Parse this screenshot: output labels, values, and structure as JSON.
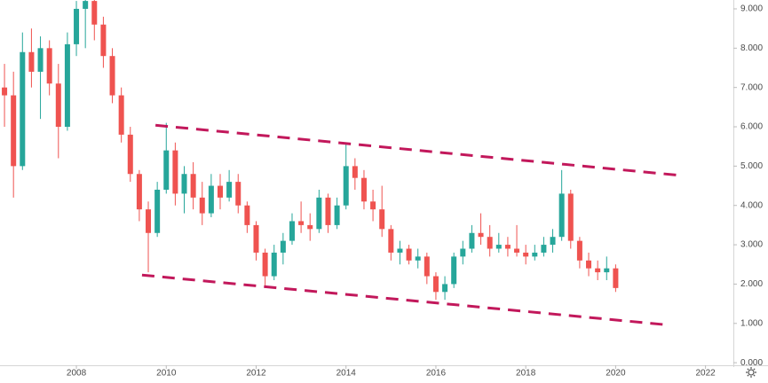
{
  "chart_data": {
    "type": "candlestick",
    "x": [
      2006.4,
      2006.6,
      2006.8,
      2007.0,
      2007.2,
      2007.4,
      2007.6,
      2007.8,
      2008.0,
      2008.2,
      2008.4,
      2008.6,
      2008.8,
      2009.0,
      2009.2,
      2009.4,
      2009.6,
      2009.8,
      2010.0,
      2010.2,
      2010.4,
      2010.6,
      2010.8,
      2011.0,
      2011.2,
      2011.4,
      2011.6,
      2011.8,
      2012.0,
      2012.2,
      2012.4,
      2012.6,
      2012.8,
      2013.0,
      2013.2,
      2013.4,
      2013.6,
      2013.8,
      2014.0,
      2014.2,
      2014.4,
      2014.6,
      2014.8,
      2015.0,
      2015.2,
      2015.4,
      2015.6,
      2015.8,
      2016.0,
      2016.2,
      2016.4,
      2016.6,
      2016.8,
      2017.0,
      2017.2,
      2017.4,
      2017.6,
      2017.8,
      2018.0,
      2018.2,
      2018.4,
      2018.6,
      2018.8,
      2019.0,
      2019.2,
      2019.4,
      2019.6,
      2019.8,
      2020.0
    ],
    "open": [
      7.0,
      6.8,
      5.0,
      7.9,
      7.4,
      8.0,
      7.1,
      6.0,
      8.1,
      9.0,
      9.2,
      8.6,
      7.8,
      6.8,
      5.8,
      4.8,
      3.9,
      3.3,
      4.4,
      5.4,
      4.3,
      4.8,
      4.2,
      3.8,
      4.5,
      4.2,
      4.6,
      4.0,
      3.5,
      2.8,
      2.2,
      2.8,
      3.1,
      3.6,
      3.5,
      3.4,
      4.2,
      3.5,
      4.0,
      5.0,
      4.7,
      4.1,
      3.9,
      3.4,
      2.8,
      2.9,
      2.6,
      2.7,
      2.2,
      1.8,
      2.0,
      2.7,
      2.9,
      3.3,
      3.2,
      2.9,
      3.0,
      2.9,
      2.8,
      2.7,
      2.8,
      3.0,
      3.2,
      4.3,
      3.1,
      2.6,
      2.4,
      2.3,
      2.4
    ],
    "high": [
      7.6,
      7.4,
      8.4,
      8.5,
      8.3,
      8.2,
      7.6,
      8.4,
      9.2,
      9.3,
      9.3,
      8.8,
      8.0,
      7.0,
      6.0,
      4.9,
      4.1,
      4.6,
      6.1,
      5.6,
      5.0,
      5.1,
      4.6,
      4.8,
      4.8,
      4.9,
      4.8,
      4.1,
      3.6,
      2.9,
      3.0,
      3.3,
      3.8,
      4.1,
      3.8,
      4.4,
      4.3,
      4.2,
      5.6,
      5.2,
      4.9,
      4.4,
      4.5,
      3.5,
      3.1,
      3.0,
      2.9,
      2.8,
      2.3,
      2.2,
      2.8,
      3.1,
      3.5,
      3.8,
      3.5,
      3.3,
      3.2,
      3.5,
      3.0,
      3.0,
      3.2,
      3.4,
      4.9,
      4.4,
      3.2,
      2.8,
      2.6,
      2.7,
      2.5
    ],
    "low": [
      6.0,
      4.2,
      4.9,
      7.0,
      6.2,
      6.8,
      5.2,
      5.9,
      7.8,
      8.0,
      8.2,
      7.5,
      6.6,
      5.6,
      4.6,
      3.6,
      2.3,
      3.2,
      4.3,
      4.0,
      3.8,
      3.9,
      3.5,
      3.7,
      3.9,
      4.1,
      3.8,
      3.3,
      2.6,
      1.9,
      2.1,
      2.5,
      3.0,
      3.3,
      3.1,
      3.3,
      3.3,
      3.4,
      3.9,
      4.4,
      3.9,
      3.6,
      3.2,
      2.6,
      2.5,
      2.5,
      2.4,
      2.0,
      1.6,
      1.6,
      1.9,
      2.5,
      2.8,
      3.0,
      2.7,
      2.8,
      2.7,
      2.7,
      2.5,
      2.6,
      2.7,
      2.8,
      3.1,
      2.9,
      2.4,
      2.2,
      2.1,
      2.1,
      1.8
    ],
    "close": [
      6.8,
      5.0,
      7.9,
      7.4,
      8.0,
      7.1,
      6.0,
      8.1,
      9.0,
      9.2,
      8.6,
      7.8,
      6.8,
      5.8,
      4.8,
      3.9,
      3.3,
      4.4,
      5.4,
      4.3,
      4.8,
      4.2,
      3.8,
      4.5,
      4.2,
      4.6,
      4.0,
      3.5,
      2.8,
      2.2,
      2.8,
      3.1,
      3.6,
      3.5,
      3.4,
      4.2,
      3.5,
      4.0,
      5.0,
      4.7,
      4.1,
      3.9,
      3.4,
      2.8,
      2.9,
      2.6,
      2.7,
      2.2,
      1.8,
      2.0,
      2.7,
      2.9,
      3.3,
      3.2,
      2.9,
      3.0,
      2.9,
      2.8,
      2.7,
      2.8,
      3.0,
      3.2,
      4.3,
      3.1,
      2.6,
      2.4,
      2.3,
      2.4,
      1.9
    ],
    "up_color": "#26a69a",
    "down_color": "#ef5350",
    "lines": [
      {
        "color": "#c2185b",
        "x": [
          2009.76,
          2021.38
        ],
        "y": [
          6.04,
          4.77
        ]
      },
      {
        "color": "#c2185b",
        "x": [
          2009.46,
          2021.08
        ],
        "y": [
          2.23,
          0.97
        ]
      }
    ],
    "xlim": [
      2006.3,
      2022.62
    ],
    "ylim": [
      -0.11,
      9.225
    ],
    "xticks": [
      2008,
      2010,
      2012,
      2014,
      2016,
      2018,
      2020,
      2022
    ],
    "yticks": [
      {
        "value": 0,
        "label": "0.000"
      },
      {
        "value": 1,
        "label": "1.000"
      },
      {
        "value": 2,
        "label": "2.000"
      },
      {
        "value": 3,
        "label": "3.000"
      },
      {
        "value": 4,
        "label": "4.000"
      },
      {
        "value": 5,
        "label": "5.000"
      },
      {
        "value": 6,
        "label": "6.000"
      },
      {
        "value": 7,
        "label": "7.000"
      },
      {
        "value": 8,
        "label": "8.000"
      },
      {
        "value": 9,
        "label": "9.000"
      }
    ]
  }
}
